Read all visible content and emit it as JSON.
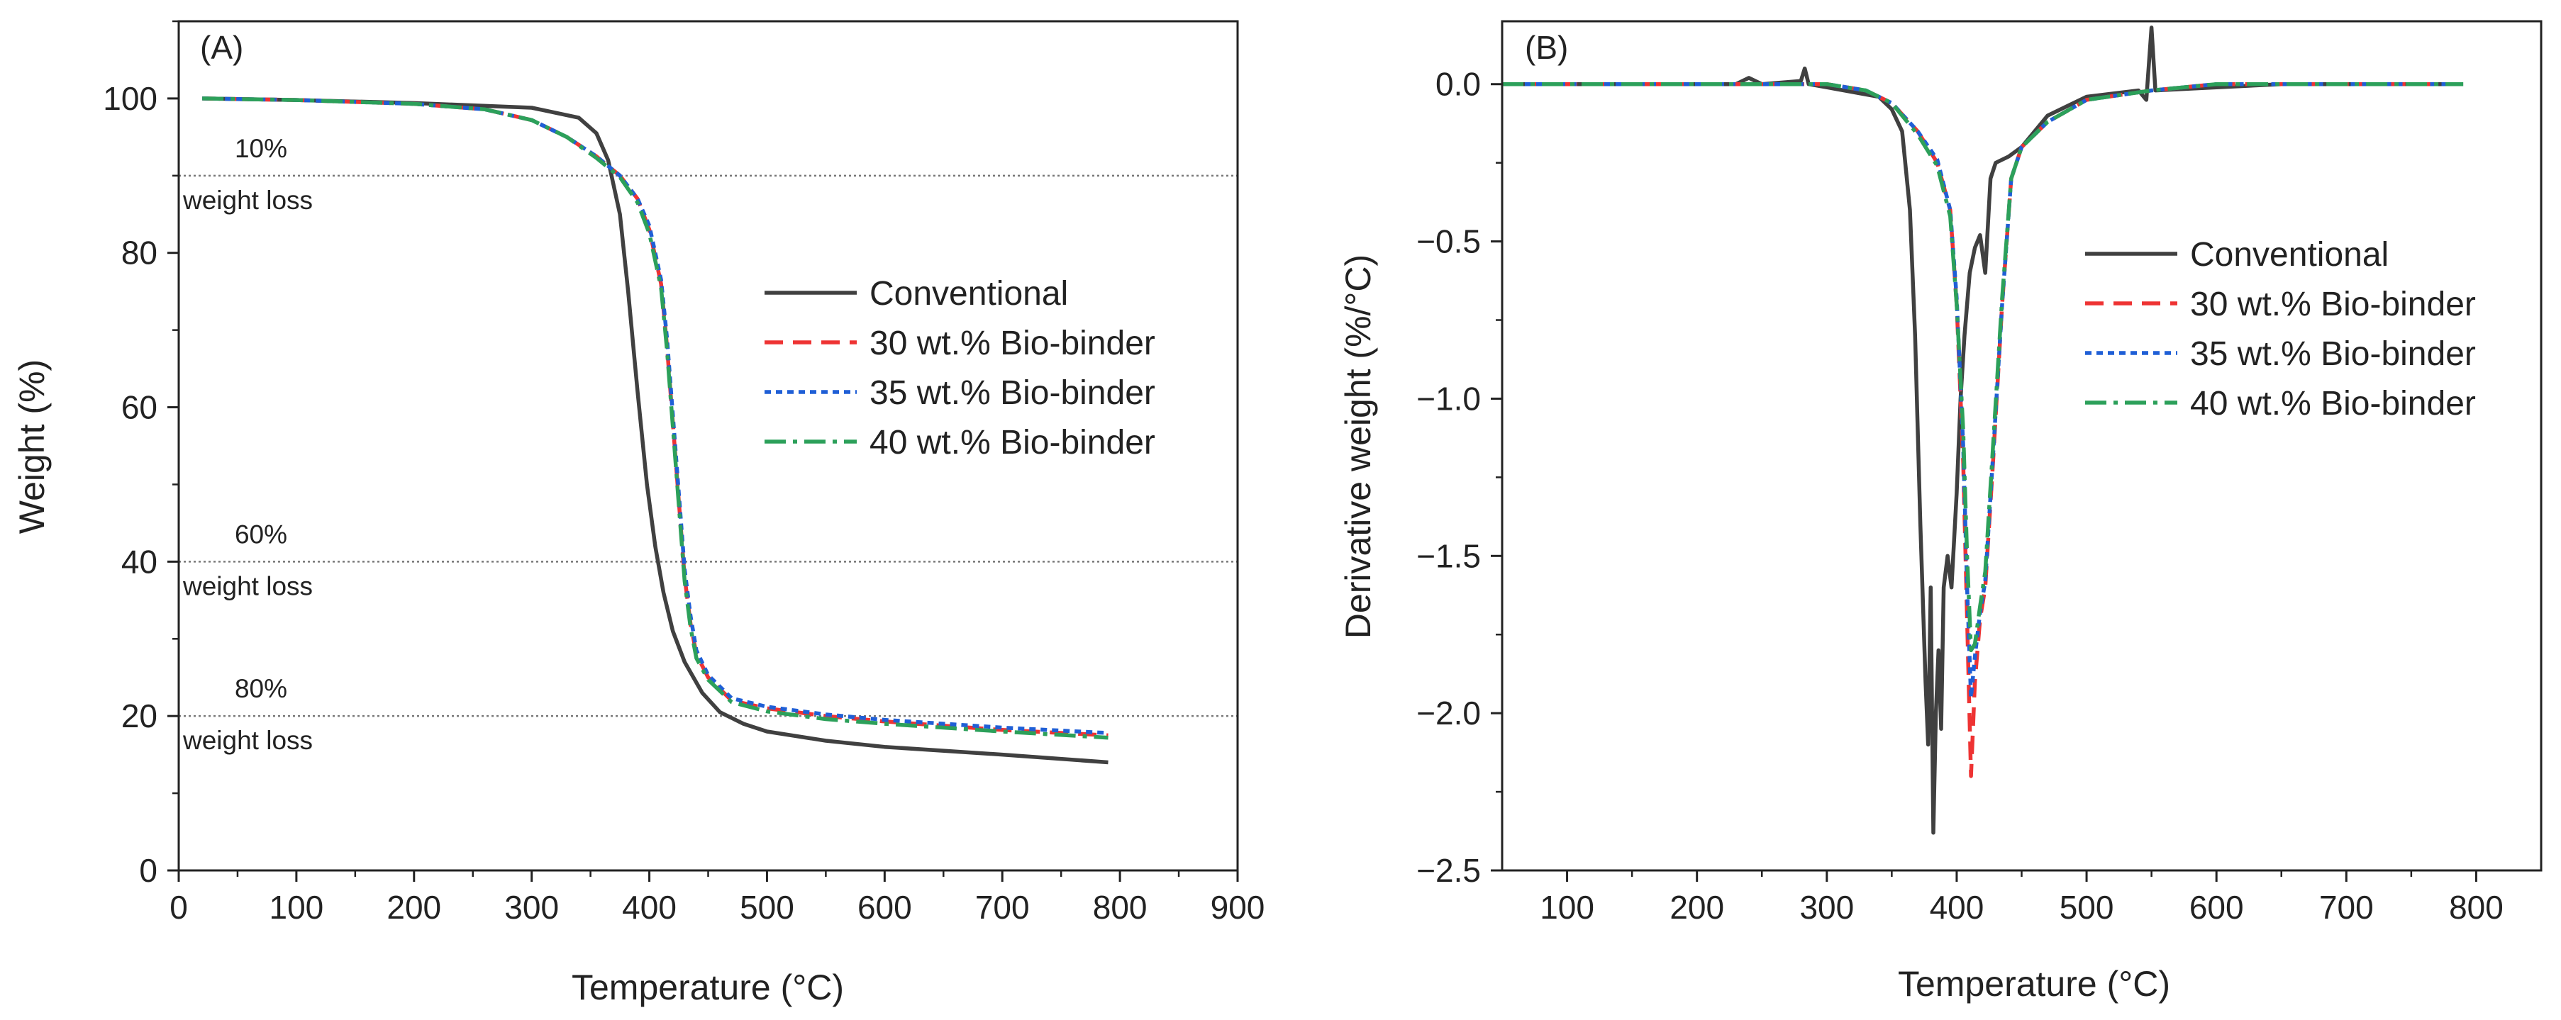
{
  "chart_data": [
    {
      "panel": "A",
      "type": "line",
      "panel_label": "(A)",
      "xlabel": "Temperature (°C)",
      "ylabel": "Weight (%)",
      "xlim": [
        0,
        900
      ],
      "ylim": [
        0,
        110
      ],
      "xticks": [
        0,
        100,
        200,
        300,
        400,
        500,
        600,
        700,
        800,
        900
      ],
      "yticks": [
        0,
        20,
        40,
        60,
        80,
        100
      ],
      "reference_lines": [
        {
          "y": 90,
          "label_top": "10%",
          "label_bottom": "weight loss"
        },
        {
          "y": 40,
          "label_top": "60%",
          "label_bottom": "weight loss"
        },
        {
          "y": 20,
          "label_top": "80%",
          "label_bottom": "weight loss"
        }
      ],
      "series": [
        {
          "name": "Conventional",
          "color": "#404040",
          "dash": "solid",
          "points": [
            [
              20,
              100
            ],
            [
              100,
              99.8
            ],
            [
              200,
              99.4
            ],
            [
              300,
              98.8
            ],
            [
              340,
              97.5
            ],
            [
              355,
              95.5
            ],
            [
              365,
              92
            ],
            [
              375,
              85
            ],
            [
              382,
              75
            ],
            [
              390,
              62
            ],
            [
              398,
              50
            ],
            [
              405,
              42
            ],
            [
              412,
              36
            ],
            [
              420,
              31
            ],
            [
              430,
              27
            ],
            [
              445,
              23
            ],
            [
              460,
              20.5
            ],
            [
              480,
              19
            ],
            [
              500,
              18
            ],
            [
              550,
              16.8
            ],
            [
              600,
              16
            ],
            [
              700,
              15
            ],
            [
              790,
              14
            ]
          ]
        },
        {
          "name": "30 wt.% Bio-binder",
          "color": "#ee3333",
          "dash": "dashed",
          "points": [
            [
              20,
              100
            ],
            [
              100,
              99.8
            ],
            [
              200,
              99.3
            ],
            [
              260,
              98.6
            ],
            [
              300,
              97.2
            ],
            [
              330,
              95
            ],
            [
              355,
              92.5
            ],
            [
              375,
              90
            ],
            [
              390,
              87
            ],
            [
              400,
              83
            ],
            [
              410,
              76
            ],
            [
              415,
              68
            ],
            [
              420,
              58
            ],
            [
              425,
              48
            ],
            [
              430,
              38
            ],
            [
              435,
              32
            ],
            [
              440,
              28
            ],
            [
              450,
              25
            ],
            [
              470,
              22
            ],
            [
              500,
              21
            ],
            [
              550,
              20
            ],
            [
              600,
              19.3
            ],
            [
              700,
              18.2
            ],
            [
              790,
              17.5
            ]
          ]
        },
        {
          "name": "35 wt.% Bio-binder",
          "color": "#1f5fd6",
          "dash": "dotted",
          "points": [
            [
              20,
              100
            ],
            [
              100,
              99.8
            ],
            [
              200,
              99.3
            ],
            [
              260,
              98.6
            ],
            [
              300,
              97.2
            ],
            [
              330,
              95
            ],
            [
              355,
              92.5
            ],
            [
              375,
              90
            ],
            [
              390,
              87
            ],
            [
              400,
              83.5
            ],
            [
              410,
              76.5
            ],
            [
              415,
              69
            ],
            [
              420,
              59
            ],
            [
              425,
              49
            ],
            [
              430,
              39
            ],
            [
              435,
              33
            ],
            [
              440,
              28.5
            ],
            [
              450,
              25.3
            ],
            [
              470,
              22.3
            ],
            [
              500,
              21.2
            ],
            [
              550,
              20.2
            ],
            [
              600,
              19.5
            ],
            [
              700,
              18.5
            ],
            [
              790,
              17.8
            ]
          ]
        },
        {
          "name": "40 wt.% Bio-binder",
          "color": "#2ca05a",
          "dash": "dashdot",
          "points": [
            [
              20,
              100
            ],
            [
              100,
              99.8
            ],
            [
              200,
              99.3
            ],
            [
              260,
              98.6
            ],
            [
              300,
              97.2
            ],
            [
              330,
              95
            ],
            [
              355,
              92.3
            ],
            [
              375,
              89.8
            ],
            [
              390,
              86.5
            ],
            [
              400,
              82.5
            ],
            [
              410,
              75.5
            ],
            [
              415,
              67.5
            ],
            [
              420,
              57.5
            ],
            [
              425,
              47.5
            ],
            [
              430,
              37.5
            ],
            [
              435,
              31.5
            ],
            [
              440,
              27.5
            ],
            [
              450,
              24.7
            ],
            [
              470,
              21.8
            ],
            [
              500,
              20.6
            ],
            [
              550,
              19.6
            ],
            [
              600,
              19
            ],
            [
              700,
              18
            ],
            [
              790,
              17.2
            ]
          ]
        }
      ],
      "legend": [
        "Conventional",
        "30 wt.% Bio-binder",
        "35 wt.% Bio-binder",
        "40 wt.% Bio-binder"
      ]
    },
    {
      "panel": "B",
      "type": "line",
      "panel_label": "(B)",
      "xlabel": "Temperature (°C)",
      "ylabel": "Derivative weight (%/°C)",
      "xlim": [
        50,
        850
      ],
      "ylim": [
        -2.5,
        0.2
      ],
      "xticks": [
        100,
        200,
        300,
        400,
        500,
        600,
        700,
        800
      ],
      "yticks": [
        0.0,
        -0.5,
        -1.0,
        -1.5,
        -2.0,
        -2.5
      ],
      "ytick_labels": [
        "0.0",
        "−0.5",
        "−1.0",
        "−1.5",
        "−2.0",
        "−2.5"
      ],
      "series": [
        {
          "name": "Conventional",
          "color": "#404040",
          "dash": "solid",
          "points": [
            [
              50,
              0
            ],
            [
              150,
              0
            ],
            [
              230,
              0
            ],
            [
              240,
              0.02
            ],
            [
              250,
              0
            ],
            [
              280,
              0.01
            ],
            [
              283,
              0.05
            ],
            [
              286,
              0
            ],
            [
              300,
              -0.01
            ],
            [
              340,
              -0.04
            ],
            [
              350,
              -0.08
            ],
            [
              358,
              -0.15
            ],
            [
              364,
              -0.4
            ],
            [
              368,
              -0.8
            ],
            [
              372,
              -1.4
            ],
            [
              376,
              -1.9
            ],
            [
              378,
              -2.1
            ],
            [
              380,
              -1.6
            ],
            [
              382,
              -2.38
            ],
            [
              384,
              -2.0
            ],
            [
              386,
              -1.8
            ],
            [
              388,
              -2.05
            ],
            [
              390,
              -1.6
            ],
            [
              393,
              -1.5
            ],
            [
              396,
              -1.6
            ],
            [
              400,
              -1.3
            ],
            [
              403,
              -1.0
            ],
            [
              406,
              -0.8
            ],
            [
              410,
              -0.6
            ],
            [
              414,
              -0.52
            ],
            [
              418,
              -0.48
            ],
            [
              422,
              -0.6
            ],
            [
              426,
              -0.3
            ],
            [
              430,
              -0.25
            ],
            [
              440,
              -0.23
            ],
            [
              450,
              -0.2
            ],
            [
              470,
              -0.1
            ],
            [
              500,
              -0.04
            ],
            [
              540,
              -0.02
            ],
            [
              546,
              -0.05
            ],
            [
              550,
              0.18
            ],
            [
              553,
              -0.02
            ],
            [
              600,
              -0.01
            ],
            [
              650,
              0
            ],
            [
              700,
              0
            ],
            [
              750,
              0
            ],
            [
              790,
              0
            ]
          ]
        },
        {
          "name": "30 wt.% Bio-binder",
          "color": "#ee3333",
          "dash": "dashed",
          "points": [
            [
              50,
              0
            ],
            [
              200,
              0
            ],
            [
              300,
              0
            ],
            [
              330,
              -0.02
            ],
            [
              350,
              -0.06
            ],
            [
              370,
              -0.15
            ],
            [
              385,
              -0.25
            ],
            [
              395,
              -0.4
            ],
            [
              400,
              -0.7
            ],
            [
              405,
              -1.2
            ],
            [
              408,
              -1.7
            ],
            [
              411,
              -2.2
            ],
            [
              414,
              -1.9
            ],
            [
              418,
              -1.7
            ],
            [
              422,
              -1.6
            ],
            [
              428,
              -1.2
            ],
            [
              435,
              -0.7
            ],
            [
              442,
              -0.3
            ],
            [
              450,
              -0.2
            ],
            [
              470,
              -0.12
            ],
            [
              500,
              -0.05
            ],
            [
              550,
              -0.02
            ],
            [
              600,
              0
            ],
            [
              700,
              0
            ],
            [
              790,
              0
            ]
          ]
        },
        {
          "name": "35 wt.% Bio-binder",
          "color": "#1f5fd6",
          "dash": "dotted",
          "points": [
            [
              50,
              0
            ],
            [
              200,
              0
            ],
            [
              300,
              0
            ],
            [
              330,
              -0.02
            ],
            [
              350,
              -0.06
            ],
            [
              370,
              -0.15
            ],
            [
              385,
              -0.24
            ],
            [
              395,
              -0.4
            ],
            [
              400,
              -0.68
            ],
            [
              405,
              -1.15
            ],
            [
              408,
              -1.6
            ],
            [
              411,
              -1.95
            ],
            [
              414,
              -1.82
            ],
            [
              418,
              -1.68
            ],
            [
              422,
              -1.58
            ],
            [
              428,
              -1.18
            ],
            [
              435,
              -0.7
            ],
            [
              442,
              -0.3
            ],
            [
              450,
              -0.2
            ],
            [
              470,
              -0.12
            ],
            [
              500,
              -0.05
            ],
            [
              550,
              -0.02
            ],
            [
              600,
              0
            ],
            [
              700,
              0
            ],
            [
              790,
              0
            ]
          ]
        },
        {
          "name": "40 wt.% Bio-binder",
          "color": "#2ca05a",
          "dash": "dashdot",
          "points": [
            [
              50,
              0
            ],
            [
              200,
              0
            ],
            [
              300,
              0
            ],
            [
              330,
              -0.02
            ],
            [
              350,
              -0.06
            ],
            [
              370,
              -0.16
            ],
            [
              385,
              -0.26
            ],
            [
              395,
              -0.42
            ],
            [
              400,
              -0.7
            ],
            [
              405,
              -1.1
            ],
            [
              408,
              -1.5
            ],
            [
              411,
              -1.8
            ],
            [
              414,
              -1.78
            ],
            [
              418,
              -1.66
            ],
            [
              422,
              -1.55
            ],
            [
              428,
              -1.15
            ],
            [
              435,
              -0.68
            ],
            [
              442,
              -0.3
            ],
            [
              450,
              -0.2
            ],
            [
              470,
              -0.12
            ],
            [
              500,
              -0.05
            ],
            [
              550,
              -0.02
            ],
            [
              600,
              0
            ],
            [
              700,
              0
            ],
            [
              790,
              0
            ]
          ]
        }
      ],
      "legend": [
        "Conventional",
        "30 wt.% Bio-binder",
        "35 wt.% Bio-binder",
        "40 wt.% Bio-binder"
      ]
    }
  ]
}
